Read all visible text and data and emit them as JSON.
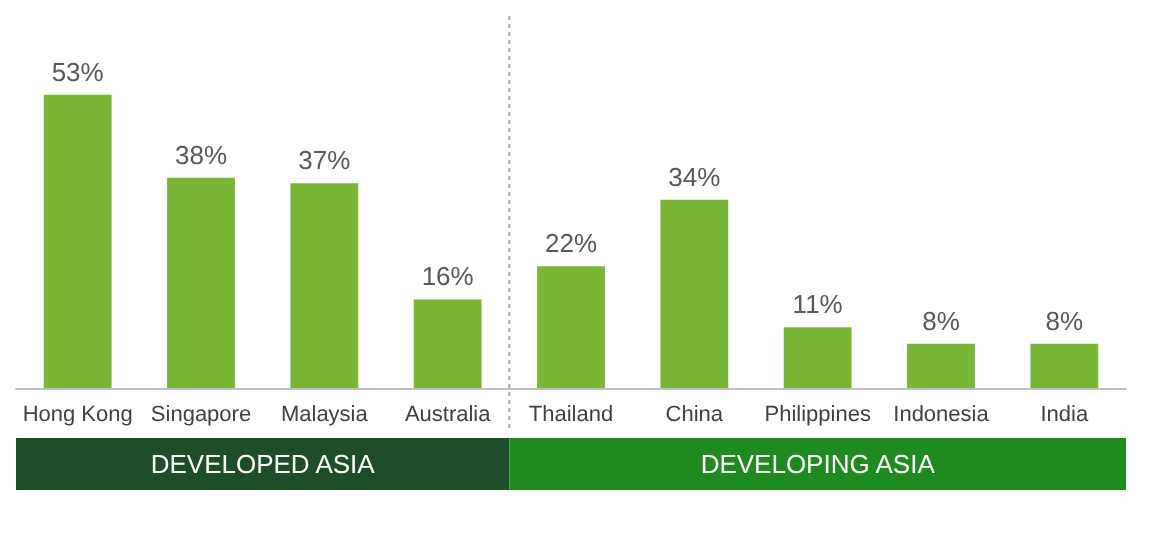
{
  "chart_data": {
    "type": "bar",
    "categories": [
      "Hong Kong",
      "Singapore",
      "Malaysia",
      "Australia",
      "Thailand",
      "China",
      "Philippines",
      "Indonesia",
      "India"
    ],
    "values": [
      53,
      38,
      37,
      16,
      22,
      34,
      11,
      8,
      8
    ],
    "value_labels": [
      "53%",
      "38%",
      "37%",
      "16%",
      "22%",
      "34%",
      "11%",
      "8%",
      "8%"
    ],
    "color": "#7ab635",
    "annotations": [
      "DEVELOPED ASIA",
      "DEVELOPING ASIA"
    ]
  }
}
